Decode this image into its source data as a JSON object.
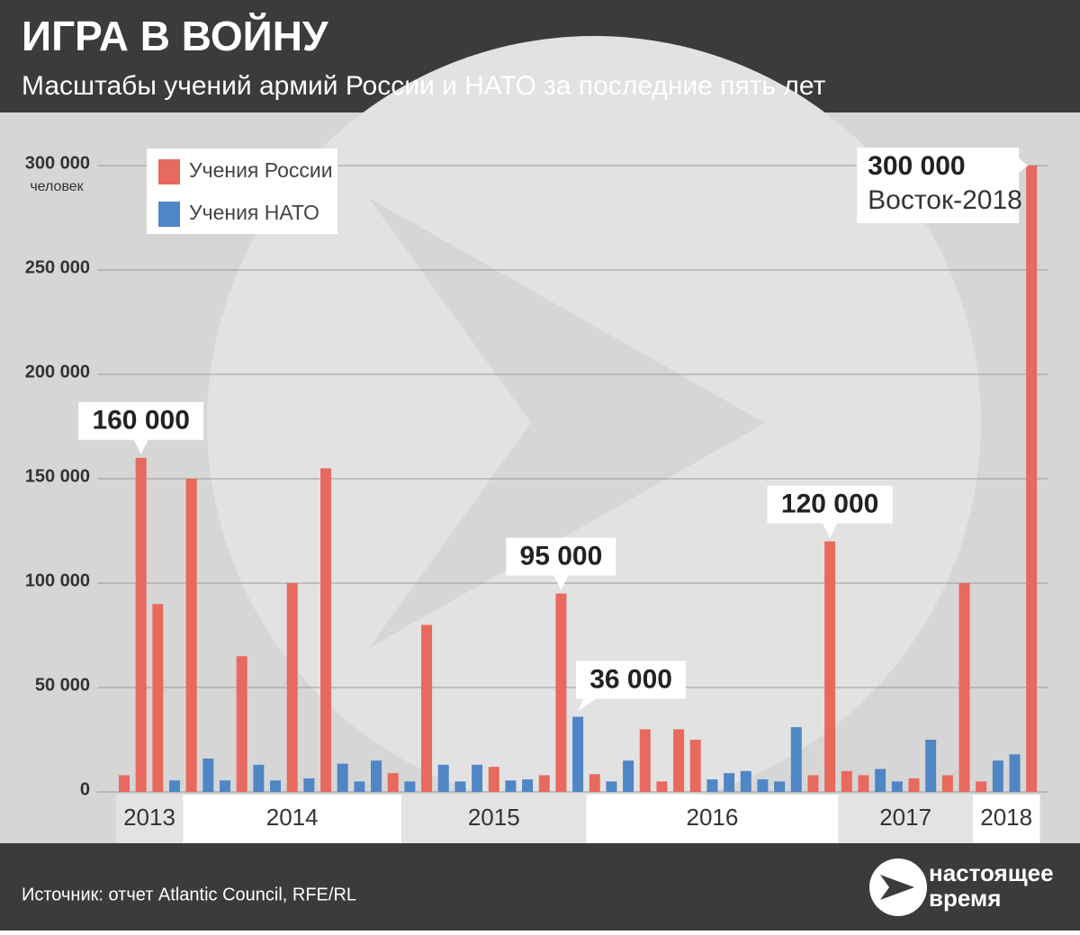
{
  "chart_data": {
    "type": "bar",
    "title": "ИГРА В ВОЙНУ",
    "subtitle": "Масштабы учений армий России и НАТО за последние пять лет",
    "y_unit": "человек",
    "groups": [
      {
        "label": "2013",
        "count": 4
      },
      {
        "label": "2014",
        "count": 13
      },
      {
        "label": "2015",
        "count": 11
      },
      {
        "label": "2016",
        "count": 15
      },
      {
        "label": "2017",
        "count": 8
      },
      {
        "label": "2018",
        "count": 4
      }
    ],
    "series": [
      {
        "name": "Учения России",
        "color": "#e8695d",
        "values": [
          8000,
          160000,
          90000,
          null,
          150000,
          null,
          null,
          65000,
          null,
          null,
          100000,
          null,
          155000,
          null,
          null,
          null,
          9000,
          null,
          80000,
          null,
          null,
          null,
          12000,
          null,
          null,
          8000,
          95000,
          null,
          8500,
          null,
          null,
          30000,
          5000,
          30000,
          25000,
          null,
          null,
          null,
          null,
          null,
          null,
          8000,
          120000,
          10000,
          8000,
          null,
          null,
          6500,
          null,
          8000,
          100000,
          5000,
          null,
          null,
          300000
        ],
        "value_labels": [
          null,
          "160 000",
          null,
          null,
          null,
          null,
          null,
          null,
          null,
          null,
          null,
          null,
          null,
          null,
          null,
          null,
          null,
          null,
          null,
          null,
          null,
          null,
          null,
          null,
          null,
          null,
          "95 000",
          null,
          null,
          null,
          null,
          null,
          null,
          null,
          null,
          null,
          null,
          null,
          null,
          null,
          null,
          null,
          "120 000",
          null,
          null,
          null,
          null,
          null,
          null,
          null,
          null,
          null,
          null,
          null,
          "300 000"
        ]
      },
      {
        "name": "Учения НАТО",
        "color": "#4f86c6",
        "values": [
          null,
          null,
          null,
          5500,
          null,
          16000,
          5500,
          null,
          13000,
          5500,
          null,
          6500,
          null,
          13500,
          5000,
          15000,
          null,
          5000,
          null,
          13000,
          5000,
          13000,
          null,
          5500,
          6000,
          null,
          null,
          36000,
          null,
          5000,
          15000,
          null,
          null,
          null,
          null,
          6000,
          9000,
          10000,
          6000,
          5000,
          31000,
          null,
          null,
          null,
          null,
          11000,
          5000,
          null,
          25000,
          null,
          null,
          null,
          15000,
          18000,
          null
        ],
        "value_labels": [
          null,
          null,
          null,
          null,
          null,
          null,
          null,
          null,
          null,
          null,
          null,
          null,
          null,
          null,
          null,
          null,
          null,
          null,
          null,
          null,
          null,
          null,
          null,
          null,
          null,
          null,
          null,
          "36 000",
          null,
          null,
          null,
          null,
          null,
          null,
          null,
          null,
          null,
          null,
          null,
          null,
          null,
          null,
          null,
          null,
          null,
          null,
          null,
          null,
          null,
          null,
          null,
          null,
          null,
          null,
          null
        ]
      }
    ],
    "annotation": "Восток-2018",
    "ylim": [
      0,
      300000
    ],
    "yticks": [
      {
        "value": 0,
        "label": "0"
      },
      {
        "value": 50000,
        "label": "50 000"
      },
      {
        "value": 100000,
        "label": "100 000"
      },
      {
        "value": 150000,
        "label": "150 000"
      },
      {
        "value": 200000,
        "label": "200 000"
      },
      {
        "value": 250000,
        "label": "250 000"
      },
      {
        "value": 300000,
        "label": "300 000"
      }
    ],
    "grid": true
  },
  "footer": {
    "source": "Источник: отчет Atlantic Council, RFE/RL",
    "logo_line1": "настоящее",
    "logo_line2": "время"
  }
}
